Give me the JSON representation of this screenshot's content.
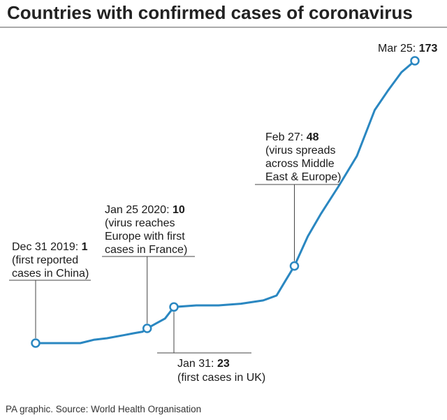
{
  "chart_data": {
    "type": "line",
    "title": "Countries with confirmed cases of coronavirus",
    "xlabel": "",
    "ylabel": "",
    "x": [
      "2019-12-31",
      "2020-01-05",
      "2020-01-10",
      "2020-01-13",
      "2020-01-16",
      "2020-01-20",
      "2020-01-22",
      "2020-01-24",
      "2020-01-25",
      "2020-01-27",
      "2020-01-29",
      "2020-01-31",
      "2020-02-05",
      "2020-02-10",
      "2020-02-15",
      "2020-02-20",
      "2020-02-23",
      "2020-02-25",
      "2020-02-27",
      "2020-03-01",
      "2020-03-04",
      "2020-03-08",
      "2020-03-12",
      "2020-03-16",
      "2020-03-19",
      "2020-03-22",
      "2020-03-25"
    ],
    "values": [
      1,
      1,
      1,
      3,
      4,
      6,
      7,
      8,
      10,
      13,
      16,
      23,
      24,
      24,
      25,
      27,
      30,
      39,
      48,
      66,
      80,
      97,
      115,
      143,
      155,
      166,
      173
    ],
    "ylim": [
      0,
      180
    ],
    "color": "#2a87c1",
    "annotations": [
      {
        "lines": [
          {
            "pre": "Dec 31 2019: ",
            "num": "1"
          },
          {
            "pre": "(first reported"
          },
          {
            "pre": "cases in China)"
          }
        ],
        "point": 0
      },
      {
        "lines": [
          {
            "pre": "Jan 25 2020: ",
            "num": "10"
          },
          {
            "pre": "(virus reaches"
          },
          {
            "pre": "Europe with first"
          },
          {
            "pre": "cases in France)"
          }
        ],
        "point": 8
      },
      {
        "lines": [
          {
            "pre": "Jan 31: ",
            "num": "23"
          },
          {
            "pre": "(first cases in UK)"
          }
        ],
        "point": 11
      },
      {
        "lines": [
          {
            "pre": "Feb 27: ",
            "num": "48"
          },
          {
            "pre": "(virus spreads"
          },
          {
            "pre": "across Middle"
          },
          {
            "pre": "East & Europe)"
          }
        ],
        "point": 18
      },
      {
        "lines": [
          {
            "pre": "Mar 25: ",
            "num": "173"
          }
        ],
        "point": 26
      }
    ]
  },
  "footer": "PA graphic. Source: World Health Organisation"
}
